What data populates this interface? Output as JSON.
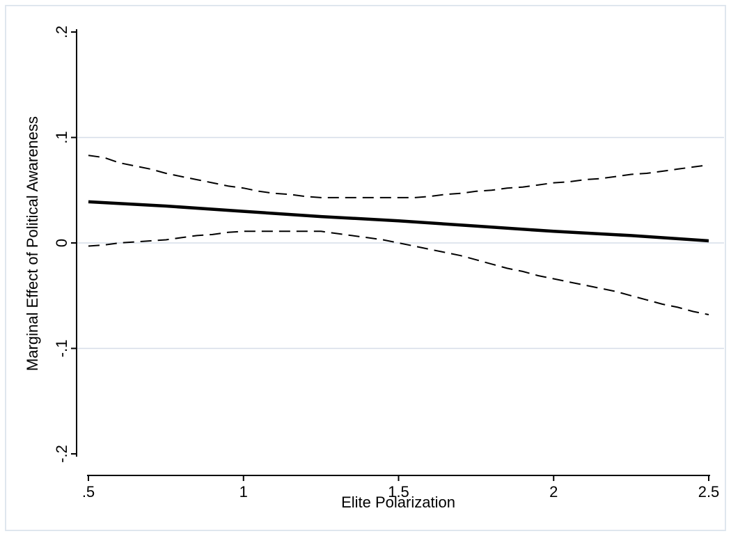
{
  "chart_data": {
    "type": "line",
    "title": "",
    "xlabel": "Elite Polarization",
    "ylabel": "Marginal Effect of Political Awareness",
    "xlim": [
      0.5,
      2.5
    ],
    "ylim": [
      -0.2,
      0.2
    ],
    "x_ticks": [
      0.5,
      1,
      1.5,
      2,
      2.5
    ],
    "x_tick_labels": [
      ".5",
      "1",
      "1.5",
      "2",
      "2.5"
    ],
    "y_ticks": [
      -0.2,
      -0.1,
      0,
      0.1,
      0.2
    ],
    "y_tick_labels": [
      "-.2",
      "-.1",
      "0",
      ".1",
      ".2"
    ],
    "grid": true,
    "colors": {
      "outer_background": "#ffffff",
      "frame": "#dfe6ee",
      "plot_background": "#ffffff",
      "gridline": "#d6dde8",
      "line": "#000000"
    },
    "series": [
      {
        "style": "solid",
        "x": [
          0.5,
          0.75,
          1.0,
          1.25,
          1.5,
          1.75,
          2.0,
          2.25,
          2.5
        ],
        "values": [
          0.039,
          0.035,
          0.03,
          0.025,
          0.021,
          0.016,
          0.011,
          0.007,
          0.002
        ]
      },
      {
        "style": "dashed",
        "x": [
          0.5,
          0.55,
          0.6,
          0.65,
          0.7,
          0.75,
          0.8,
          0.85,
          0.9,
          0.95,
          1.0,
          1.05,
          1.1,
          1.15,
          1.2,
          1.25,
          1.3,
          1.35,
          1.4,
          1.45,
          1.5,
          1.55,
          1.6,
          1.65,
          1.7,
          1.75,
          1.8,
          1.85,
          1.9,
          1.95,
          2.0,
          2.05,
          2.1,
          2.15,
          2.2,
          2.25,
          2.3,
          2.35,
          2.4,
          2.45,
          2.5
        ],
        "values": [
          0.083,
          0.081,
          0.076,
          0.073,
          0.07,
          0.066,
          0.063,
          0.06,
          0.057,
          0.054,
          0.052,
          0.049,
          0.047,
          0.046,
          0.044,
          0.043,
          0.043,
          0.043,
          0.043,
          0.043,
          0.043,
          0.043,
          0.044,
          0.046,
          0.047,
          0.049,
          0.05,
          0.052,
          0.053,
          0.055,
          0.057,
          0.058,
          0.06,
          0.061,
          0.063,
          0.065,
          0.066,
          0.068,
          0.07,
          0.072,
          0.074
        ]
      },
      {
        "style": "dashed",
        "x": [
          0.5,
          0.55,
          0.6,
          0.65,
          0.7,
          0.75,
          0.8,
          0.85,
          0.9,
          0.95,
          1.0,
          1.05,
          1.1,
          1.15,
          1.2,
          1.25,
          1.3,
          1.35,
          1.4,
          1.45,
          1.5,
          1.55,
          1.6,
          1.65,
          1.7,
          1.75,
          1.8,
          1.85,
          1.9,
          1.95,
          2.0,
          2.05,
          2.1,
          2.15,
          2.2,
          2.25,
          2.3,
          2.35,
          2.4,
          2.45,
          2.5
        ],
        "values": [
          -0.003,
          -0.002,
          0.0,
          0.001,
          0.002,
          0.003,
          0.005,
          0.007,
          0.008,
          0.01,
          0.011,
          0.011,
          0.011,
          0.011,
          0.011,
          0.011,
          0.009,
          0.007,
          0.005,
          0.003,
          0.0,
          -0.003,
          -0.006,
          -0.009,
          -0.012,
          -0.016,
          -0.02,
          -0.024,
          -0.027,
          -0.031,
          -0.034,
          -0.037,
          -0.04,
          -0.043,
          -0.046,
          -0.05,
          -0.054,
          -0.058,
          -0.061,
          -0.065,
          -0.068
        ]
      }
    ]
  }
}
